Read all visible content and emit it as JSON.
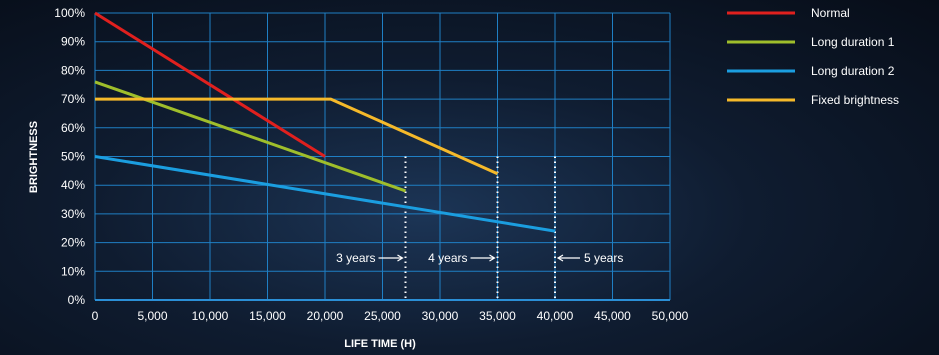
{
  "chart_data": {
    "type": "line",
    "xlabel": "LIFE TIME (H)",
    "ylabel": "BRIGHTNESS",
    "xlim": [
      0,
      50000
    ],
    "ylim": [
      0,
      100
    ],
    "x_ticks": [
      "0",
      "5,000",
      "10,000",
      "15,000",
      "20,000",
      "25,000",
      "30,000",
      "35,000",
      "40,000",
      "45,000",
      "50,000"
    ],
    "y_ticks": [
      "0%",
      "10%",
      "20%",
      "30%",
      "40%",
      "50%",
      "60%",
      "70%",
      "80%",
      "90%",
      "100%"
    ],
    "grid": true,
    "legend_position": "top-right",
    "series": [
      {
        "name": "Normal",
        "color": "#e0201e",
        "points": [
          [
            0,
            100
          ],
          [
            20000,
            50
          ]
        ]
      },
      {
        "name": "Long duration 1",
        "color": "#9fbe2b",
        "points": [
          [
            0,
            76
          ],
          [
            27000,
            38
          ]
        ]
      },
      {
        "name": "Long duration 2",
        "color": "#1b9ee0",
        "points": [
          [
            0,
            50
          ],
          [
            40000,
            24
          ]
        ]
      },
      {
        "name": "Fixed brightness",
        "color": "#f5b92a",
        "points": [
          [
            0,
            70
          ],
          [
            20500,
            70
          ],
          [
            35000,
            44
          ]
        ]
      }
    ],
    "annotations": [
      {
        "text": "3 years",
        "x": 27000,
        "y_top": 50,
        "arrow": "right"
      },
      {
        "text": "4 years",
        "x": 35000,
        "y_top": 50,
        "arrow": "right"
      },
      {
        "text": "5 years",
        "x": 40000,
        "y_top": 50,
        "arrow": "left"
      }
    ]
  }
}
